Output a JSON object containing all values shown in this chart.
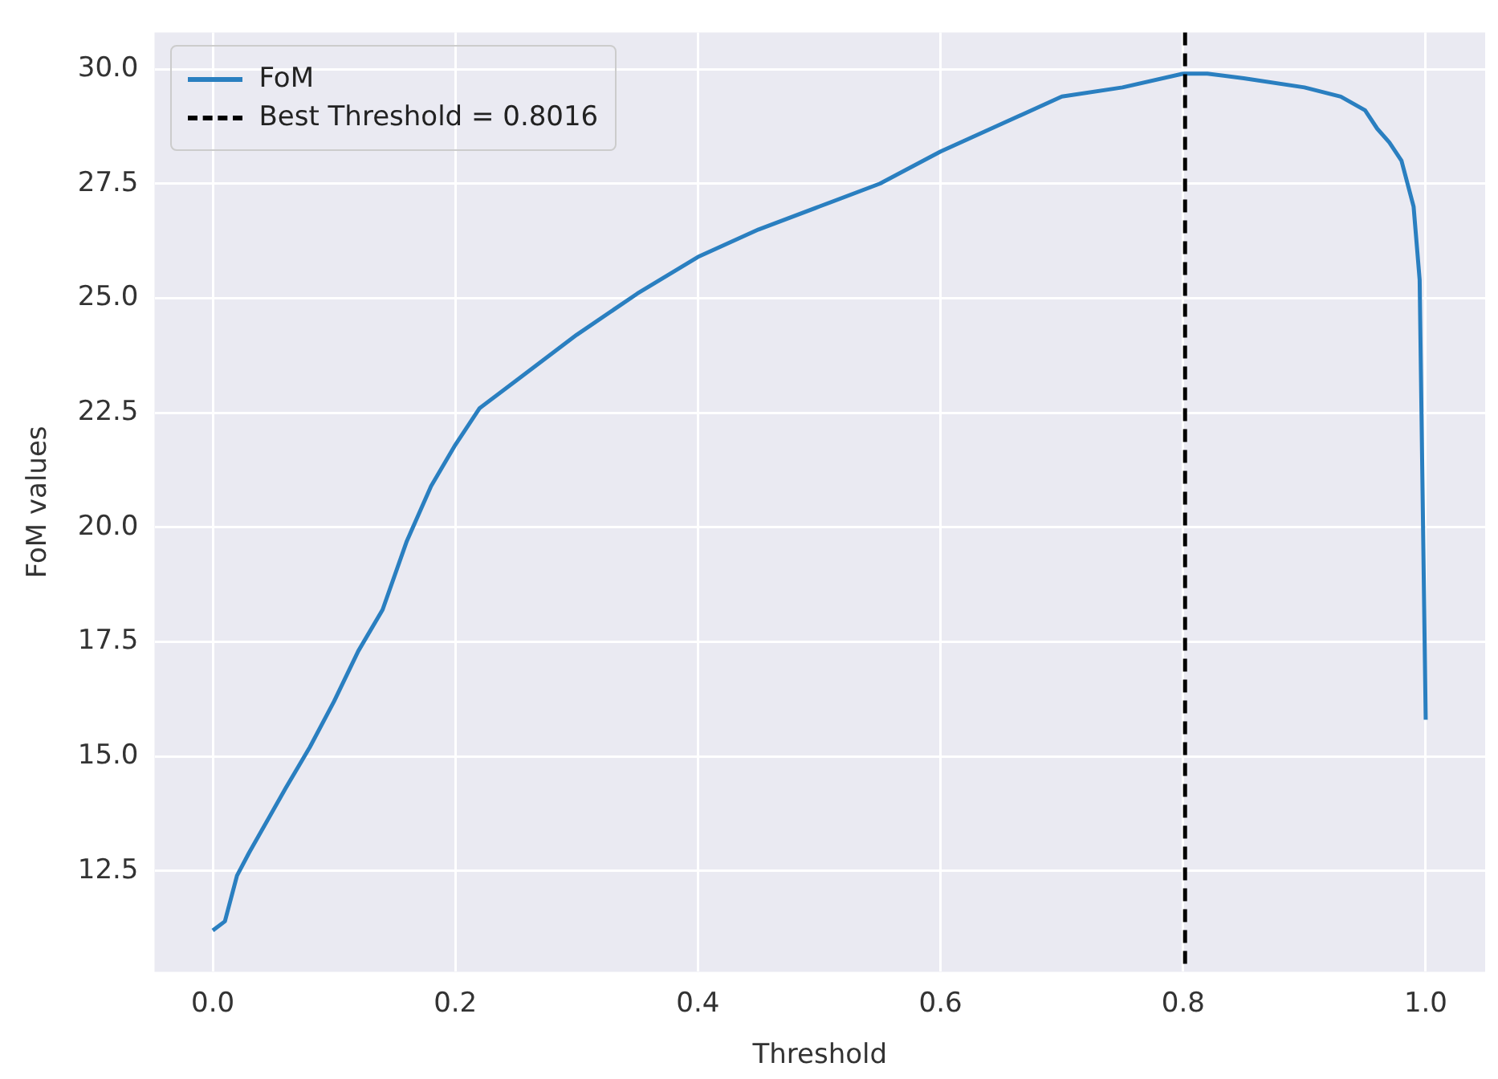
{
  "chart_data": {
    "type": "line",
    "xlabel": "Threshold",
    "ylabel": "FoM values",
    "x": [
      0,
      0.01,
      0.02,
      0.03,
      0.06,
      0.08,
      0.1,
      0.12,
      0.14,
      0.16,
      0.18,
      0.2,
      0.22,
      0.25,
      0.3,
      0.35,
      0.4,
      0.45,
      0.5,
      0.55,
      0.6,
      0.65,
      0.7,
      0.75,
      0.8,
      0.82,
      0.85,
      0.9,
      0.93,
      0.95,
      0.96,
      0.97,
      0.98,
      0.99,
      0.995,
      1.0
    ],
    "series": [
      {
        "name": "FoM",
        "color": "#2a7fc0",
        "values": [
          11.2,
          11.4,
          12.4,
          12.9,
          14.3,
          15.2,
          16.2,
          17.3,
          18.2,
          19.7,
          20.9,
          21.8,
          22.6,
          23.2,
          24.2,
          25.1,
          25.9,
          26.5,
          27.0,
          27.5,
          28.2,
          28.8,
          29.4,
          29.6,
          29.9,
          29.9,
          29.8,
          29.6,
          29.4,
          29.1,
          28.7,
          28.4,
          28.0,
          27.0,
          25.4,
          15.8
        ]
      }
    ],
    "ref_lines": [
      {
        "axis": "x",
        "value": 0.8016,
        "label": "Best Threshold = 0.8016",
        "color": "#000000",
        "line_style": "dashed"
      }
    ],
    "xlim": [
      -0.048,
      1.049
    ],
    "xticks": [
      {
        "value": 0,
        "label": "0.0"
      },
      0.2,
      0.4,
      0.6,
      0.8,
      {
        "value": 1,
        "label": "1.0"
      }
    ],
    "ylim": [
      10.3,
      30.8
    ],
    "yticks": [
      12.5,
      {
        "value": 15,
        "label": "15.0"
      },
      17.5,
      {
        "value": 20,
        "label": "20.0"
      },
      22.5,
      {
        "value": 25,
        "label": "25.0"
      },
      27.5,
      {
        "value": 30,
        "label": "30.0"
      }
    ],
    "grid": true,
    "legend": "top left",
    "marker": "none",
    "line_style": "solid"
  }
}
